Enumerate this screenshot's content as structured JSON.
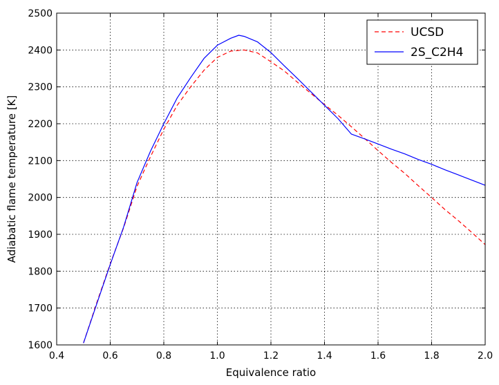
{
  "chart_data": {
    "type": "line",
    "xlabel": "Equivalence ratio",
    "ylabel": "Adiabatic flame temperature [K]",
    "xlim": [
      0.4,
      2.0
    ],
    "ylim": [
      1600,
      2500
    ],
    "xticks": [
      0.4,
      0.6,
      0.8,
      1.0,
      1.2,
      1.4,
      1.6,
      1.8,
      2.0
    ],
    "xtick_labels": [
      "0.4",
      "0.6",
      "0.8",
      "1.0",
      "1.2",
      "1.4",
      "1.6",
      "1.8",
      "2.0"
    ],
    "yticks": [
      1600,
      1700,
      1800,
      1900,
      2000,
      2100,
      2200,
      2300,
      2400,
      2500
    ],
    "ytick_labels": [
      "1600",
      "1700",
      "1800",
      "1900",
      "2000",
      "2100",
      "2200",
      "2300",
      "2400",
      "2500"
    ],
    "grid": true,
    "legend_position": "top-right",
    "series": [
      {
        "name": "UCSD",
        "color": "#ff0000",
        "style": "dashed",
        "x": [
          0.5,
          0.55,
          0.6,
          0.65,
          0.7,
          0.75,
          0.8,
          0.85,
          0.9,
          0.95,
          1.0,
          1.05,
          1.1,
          1.15,
          1.2,
          1.25,
          1.3,
          1.35,
          1.4,
          1.45,
          1.5,
          1.55,
          1.6,
          1.65,
          1.7,
          1.75,
          1.8,
          1.85,
          1.9,
          1.95,
          2.0
        ],
        "y": [
          1605,
          1715,
          1820,
          1918,
          2030,
          2110,
          2185,
          2250,
          2300,
          2345,
          2380,
          2397,
          2400,
          2392,
          2368,
          2343,
          2312,
          2282,
          2252,
          2223,
          2192,
          2160,
          2127,
          2095,
          2065,
          2032,
          2000,
          1967,
          1937,
          1905,
          1872
        ]
      },
      {
        "name": "2S_C2H4",
        "color": "#0000ff",
        "style": "solid",
        "x": [
          0.5,
          0.55,
          0.6,
          0.65,
          0.7,
          0.75,
          0.8,
          0.85,
          0.9,
          0.95,
          1.0,
          1.05,
          1.08,
          1.1,
          1.15,
          1.2,
          1.25,
          1.3,
          1.35,
          1.4,
          1.45,
          1.5,
          1.55,
          1.6,
          1.65,
          1.7,
          1.75,
          1.8,
          1.85,
          1.9,
          1.95,
          2.0
        ],
        "y": [
          1605,
          1712,
          1818,
          1920,
          2040,
          2125,
          2200,
          2270,
          2325,
          2377,
          2413,
          2432,
          2440,
          2437,
          2422,
          2393,
          2357,
          2322,
          2286,
          2250,
          2214,
          2172,
          2159,
          2145,
          2131,
          2118,
          2103,
          2090,
          2075,
          2061,
          2047,
          2033
        ]
      }
    ]
  }
}
